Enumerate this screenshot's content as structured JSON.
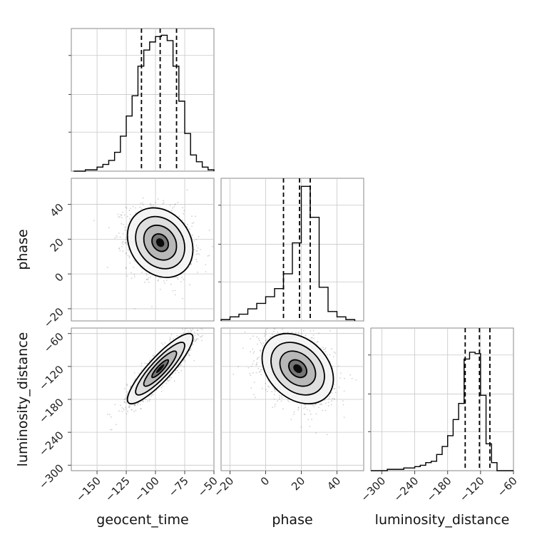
{
  "chart_data": [
    {
      "type": "histogram",
      "panel": "geocent_time",
      "x": [
        -170,
        -165,
        -160,
        -155,
        -150,
        -145,
        -140,
        -135,
        -130,
        -125,
        -120,
        -115,
        -110,
        -105,
        -100,
        -95,
        -90,
        -85,
        -80,
        -75,
        -70,
        -65,
        -60,
        -55,
        -50
      ],
      "density": [
        0.0,
        0.0,
        0.01,
        0.01,
        0.03,
        0.05,
        0.08,
        0.14,
        0.26,
        0.41,
        0.56,
        0.78,
        0.9,
        0.96,
        1.0,
        1.01,
        0.97,
        0.78,
        0.52,
        0.28,
        0.12,
        0.07,
        0.03,
        0.01
      ],
      "quantiles": [
        -112,
        -96,
        -82
      ],
      "xlim": [
        -172,
        -50
      ],
      "grid": true
    },
    {
      "type": "histogram",
      "panel": "phase",
      "x": [
        -25,
        -20,
        -15,
        -10,
        -5,
        0,
        5,
        10,
        15,
        20,
        25,
        30,
        35,
        40,
        45,
        50,
        55
      ],
      "density": [
        0.01,
        0.03,
        0.05,
        0.09,
        0.13,
        0.18,
        0.24,
        0.35,
        0.58,
        1.0,
        0.77,
        0.25,
        0.07,
        0.03,
        0.01
      ],
      "quantiles": [
        10,
        19,
        25
      ],
      "xlim": [
        -25,
        55
      ],
      "grid": true
    },
    {
      "type": "histogram",
      "panel": "luminosity_distance",
      "x": [
        -320,
        -310,
        -300,
        -290,
        -280,
        -270,
        -260,
        -250,
        -240,
        -230,
        -220,
        -210,
        -200,
        -190,
        -180,
        -170,
        -160,
        -150,
        -140,
        -130,
        -120,
        -110,
        -100,
        -90,
        -80,
        -70,
        -60
      ],
      "density": [
        0.0,
        0.0,
        0.0,
        0.01,
        0.01,
        0.01,
        0.02,
        0.02,
        0.03,
        0.04,
        0.06,
        0.07,
        0.12,
        0.18,
        0.26,
        0.38,
        0.5,
        0.83,
        0.88,
        0.87,
        0.56,
        0.2,
        0.06,
        0.0,
        0.0,
        0.0
      ],
      "quantiles": [
        -148,
        -122,
        -103
      ],
      "xlim": [
        -320,
        -60
      ],
      "grid": true
    },
    {
      "type": "scatter",
      "panel": "geocent_time vs phase",
      "x_param": "geocent_time",
      "y_param": "phase",
      "mean": [
        -96,
        18
      ],
      "std": [
        14,
        10
      ],
      "corr": -0.2,
      "contour_levels": [
        0.12,
        0.26,
        0.5,
        0.84
      ],
      "xlim": [
        -172,
        -50
      ],
      "ylim": [
        -27,
        55
      ],
      "grid": true
    },
    {
      "type": "scatter",
      "panel": "geocent_time vs luminosity_distance",
      "x_param": "geocent_time",
      "y_param": "luminosity_distance",
      "mean": [
        -96,
        -124
      ],
      "std": [
        14,
        32
      ],
      "corr": 0.88,
      "contour_levels": [
        0.12,
        0.26,
        0.5,
        0.84
      ],
      "xlim": [
        -172,
        -50
      ],
      "ylim": [
        -310,
        -50
      ],
      "grid": true
    },
    {
      "type": "scatter",
      "panel": "phase vs luminosity_distance",
      "x_param": "phase",
      "y_param": "luminosity_distance",
      "mean": [
        18,
        -124
      ],
      "std": [
        10,
        32
      ],
      "corr": -0.3,
      "contour_levels": [
        0.12,
        0.26,
        0.5,
        0.84
      ],
      "xlim": [
        -25,
        55
      ],
      "ylim": [
        -310,
        -50
      ],
      "grid": true
    }
  ],
  "axes": {
    "geocent_time": {
      "label": "geocent_time",
      "ticks": [
        -150,
        -125,
        -100,
        -75,
        -50
      ],
      "tick_labels": [
        "−150",
        "−125",
        "−100",
        "−75",
        "−50"
      ]
    },
    "phase": {
      "label": "phase",
      "ticks": [
        -20,
        0,
        20,
        40
      ],
      "tick_labels": [
        "−20",
        "0",
        "20",
        "40"
      ]
    },
    "luminosity_distance": {
      "label": "luminosity_distance",
      "ticks": [
        -300,
        -240,
        -180,
        -120,
        -60
      ],
      "tick_labels": [
        "−300",
        "−240",
        "−180",
        "−120",
        "−60"
      ]
    }
  }
}
